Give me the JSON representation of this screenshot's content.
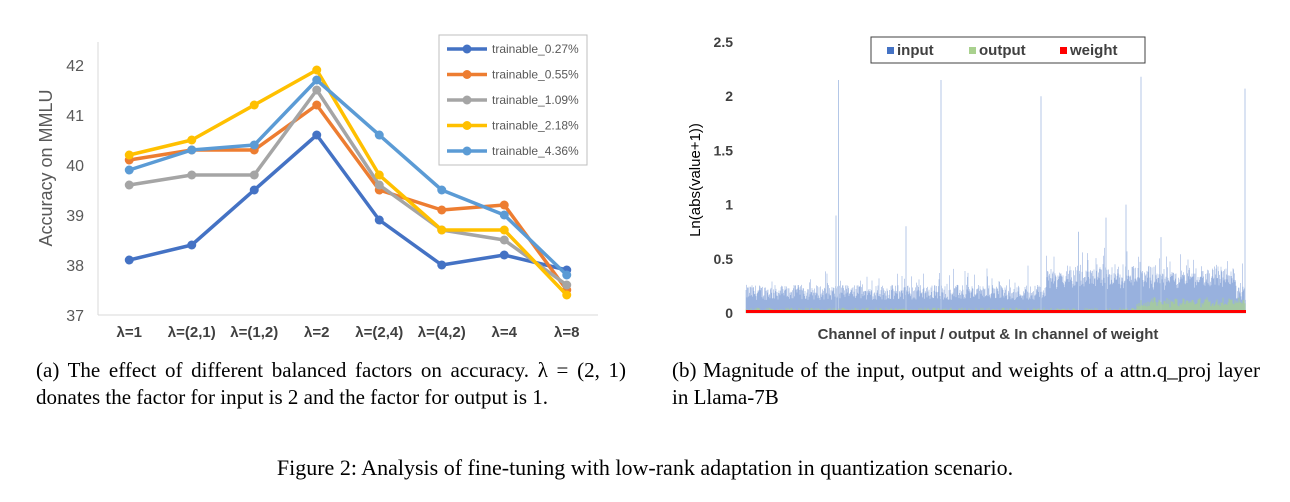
{
  "chart_data": [
    {
      "type": "line",
      "ylabel": "Accuracy on MMLU",
      "categories": [
        "λ=1",
        "λ=(2,1)",
        "λ=(1,2)",
        "λ=2",
        "λ=(2,4)",
        "λ=(4,2)",
        "λ=4",
        "λ=8"
      ],
      "ylim": [
        37,
        42.5
      ],
      "yticks": [
        37,
        38,
        39,
        40,
        41,
        42
      ],
      "grid": false,
      "legend_position": "top-right",
      "series": [
        {
          "name": "trainable_0.27%",
          "color": "#4472c4",
          "values": [
            38.1,
            38.4,
            39.5,
            40.6,
            38.9,
            38.0,
            38.2,
            37.9
          ]
        },
        {
          "name": "trainable_0.55%",
          "color": "#ed7d31",
          "values": [
            40.1,
            40.3,
            40.3,
            41.2,
            39.5,
            39.1,
            39.2,
            37.5
          ]
        },
        {
          "name": "trainable_1.09%",
          "color": "#a5a5a5",
          "values": [
            39.6,
            39.8,
            39.8,
            41.5,
            39.6,
            38.7,
            38.5,
            37.6
          ]
        },
        {
          "name": "trainable_2.18%",
          "color": "#ffc000",
          "values": [
            40.2,
            40.5,
            41.2,
            41.9,
            39.8,
            38.7,
            38.7,
            37.4
          ]
        },
        {
          "name": "trainable_4.36%",
          "color": "#5b9bd5",
          "values": [
            39.9,
            40.3,
            40.4,
            41.7,
            40.6,
            39.5,
            39.0,
            37.8
          ]
        }
      ]
    },
    {
      "type": "area",
      "ylabel": "Ln(abs(value+1))",
      "xlabel": "Channel of input / output & In channel of weight",
      "ylim": [
        0,
        2.5
      ],
      "yticks": [
        "0",
        "0.5",
        "1",
        "1.5",
        "2",
        "2.5"
      ],
      "grid": false,
      "legend_position": "top",
      "series": [
        {
          "name": "input",
          "color": "#4472c4",
          "typical_range": [
            0.05,
            0.45
          ],
          "peak": 2.15
        },
        {
          "name": "output",
          "color": "#a9d18e",
          "typical_range": [
            0.0,
            0.12
          ]
        },
        {
          "name": "weight",
          "color": "#ff0000",
          "typical_range": [
            0.0,
            0.02
          ]
        }
      ]
    }
  ],
  "captions": {
    "a": "(a) The effect of different balanced factors on accuracy. λ = (2, 1) donates the factor for input is 2 and the factor for output is 1.",
    "b": "(b) Magnitude of the input, output and weights of a attn.q_proj layer in Llama-7B",
    "figure": "Figure 2: Analysis of fine-tuning with low-rank adaptation in quantization scenario."
  }
}
